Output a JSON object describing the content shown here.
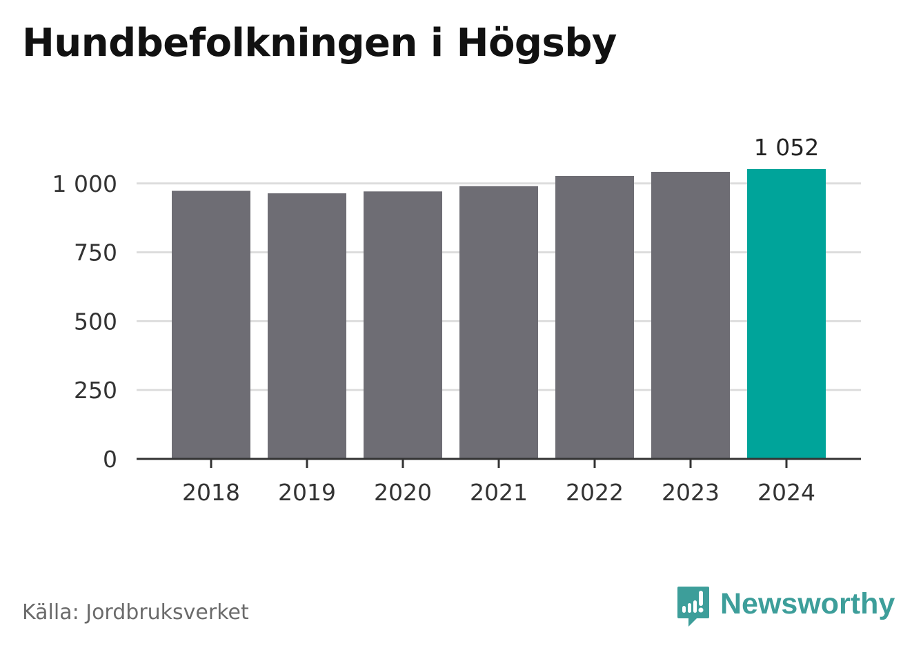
{
  "title": "Hundbefolkningen i Högsby",
  "source": "Källa: Jordbruksverket",
  "brand": {
    "name": "Newsworthy",
    "logo_icon": "newsworthy-logo-icon",
    "color": "#3d9e9a"
  },
  "colors": {
    "bar": "#6e6d74",
    "highlight": "#00a49a",
    "grid": "#dddddd",
    "axis": "#333333"
  },
  "chart_data": {
    "type": "bar",
    "title": "Hundbefolkningen i Högsby",
    "categories": [
      "2018",
      "2019",
      "2020",
      "2021",
      "2022",
      "2023",
      "2024"
    ],
    "values": [
      973,
      964,
      971,
      990,
      1027,
      1042,
      1052
    ],
    "highlight_index": 6,
    "value_label": "1 052",
    "ylim": [
      0,
      1052
    ],
    "yticks": [
      0,
      250,
      500,
      750,
      1000
    ],
    "ytick_labels": [
      "0",
      "250",
      "500",
      "750",
      "1 000"
    ],
    "grid": true,
    "xlabel": "",
    "ylabel": ""
  }
}
